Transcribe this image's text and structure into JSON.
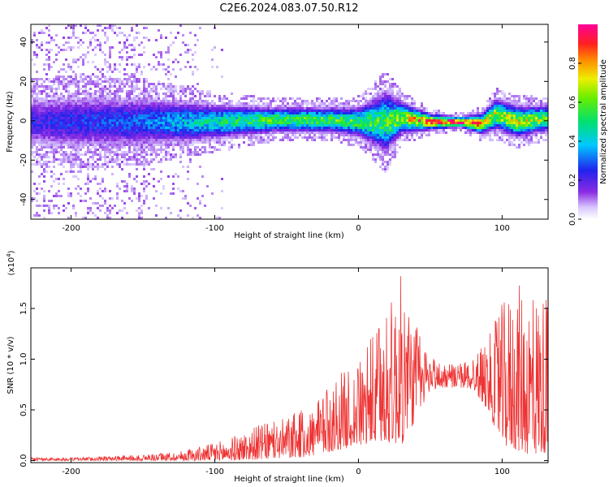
{
  "title": "C2E6.2024.083.07.50.R12",
  "chart_data": [
    {
      "type": "heatmap",
      "xlabel": "Height of straight line (km)",
      "ylabel": "Frequency (Hz)",
      "xlim": [
        -228,
        132
      ],
      "ylim": [
        -50,
        49
      ],
      "x_ticks": [
        -200,
        -100,
        0,
        100
      ],
      "y_ticks": [
        -40,
        -20,
        0,
        20,
        40
      ],
      "colorbar": {
        "label": "Normalized spectral amplitude",
        "ticks": [
          0.0,
          0.2,
          0.4,
          0.6,
          0.8
        ],
        "range": [
          0,
          1
        ],
        "colormap": "rainbow (purple-blue-cyan-green-yellow-red-magenta)"
      },
      "ridge_profile": {
        "x": [
          -228,
          -200,
          -150,
          -100,
          -60,
          -20,
          0,
          18,
          30,
          50,
          70,
          85,
          95,
          110,
          132
        ],
        "peak_amplitude": [
          0.22,
          0.25,
          0.3,
          0.45,
          0.55,
          0.55,
          0.55,
          0.55,
          0.65,
          0.9,
          0.9,
          0.75,
          0.65,
          0.7,
          0.6
        ],
        "center_frequency_hz": [
          0,
          0,
          0,
          0,
          1,
          1,
          0,
          0,
          2,
          0,
          0,
          -1,
          4,
          0,
          2
        ],
        "band_halfwidth_hz": [
          10,
          11,
          10,
          7,
          5,
          5,
          6,
          12,
          6,
          3,
          2,
          4,
          6,
          6,
          5
        ]
      }
    },
    {
      "type": "line",
      "xlabel": "Height of straight line (km)",
      "ylabel": "SNR (10 * v/v)",
      "y_multiplier_label": "(x10",
      "y_multiplier_exp": "4",
      "xlim": [
        -228,
        132
      ],
      "ylim": [
        -0.02,
        1.9
      ],
      "x_ticks": [
        -200,
        -100,
        0,
        100
      ],
      "y_ticks": [
        0.0,
        0.5,
        1.0,
        1.5
      ],
      "y_tick_labels": [
        "0.0",
        "0.5",
        "1.0",
        "1.5"
      ],
      "color": "#ee3333",
      "series": [
        {
          "x": [
            -228,
            -200,
            -160,
            -130,
            -110,
            -90,
            -70,
            -55,
            -40,
            -30,
            -15,
            0,
            10,
            20,
            30,
            40,
            50,
            60,
            70,
            80,
            90,
            100,
            110,
            120,
            132
          ],
          "envelope_max": [
            0.03,
            0.03,
            0.05,
            0.08,
            0.14,
            0.22,
            0.35,
            0.4,
            0.5,
            0.55,
            0.85,
            0.95,
            1.25,
            1.5,
            1.85,
            1.35,
            1.05,
            0.95,
            0.95,
            1.05,
            1.2,
            1.55,
            1.75,
            1.7,
            1.65
          ],
          "envelope_min": [
            0.0,
            0.0,
            0.0,
            0.0,
            0.0,
            0.0,
            0.01,
            0.02,
            0.03,
            0.05,
            0.1,
            0.15,
            0.15,
            0.18,
            0.15,
            0.4,
            0.7,
            0.72,
            0.72,
            0.7,
            0.5,
            0.15,
            0.1,
            0.05,
            0.08
          ]
        }
      ]
    }
  ]
}
